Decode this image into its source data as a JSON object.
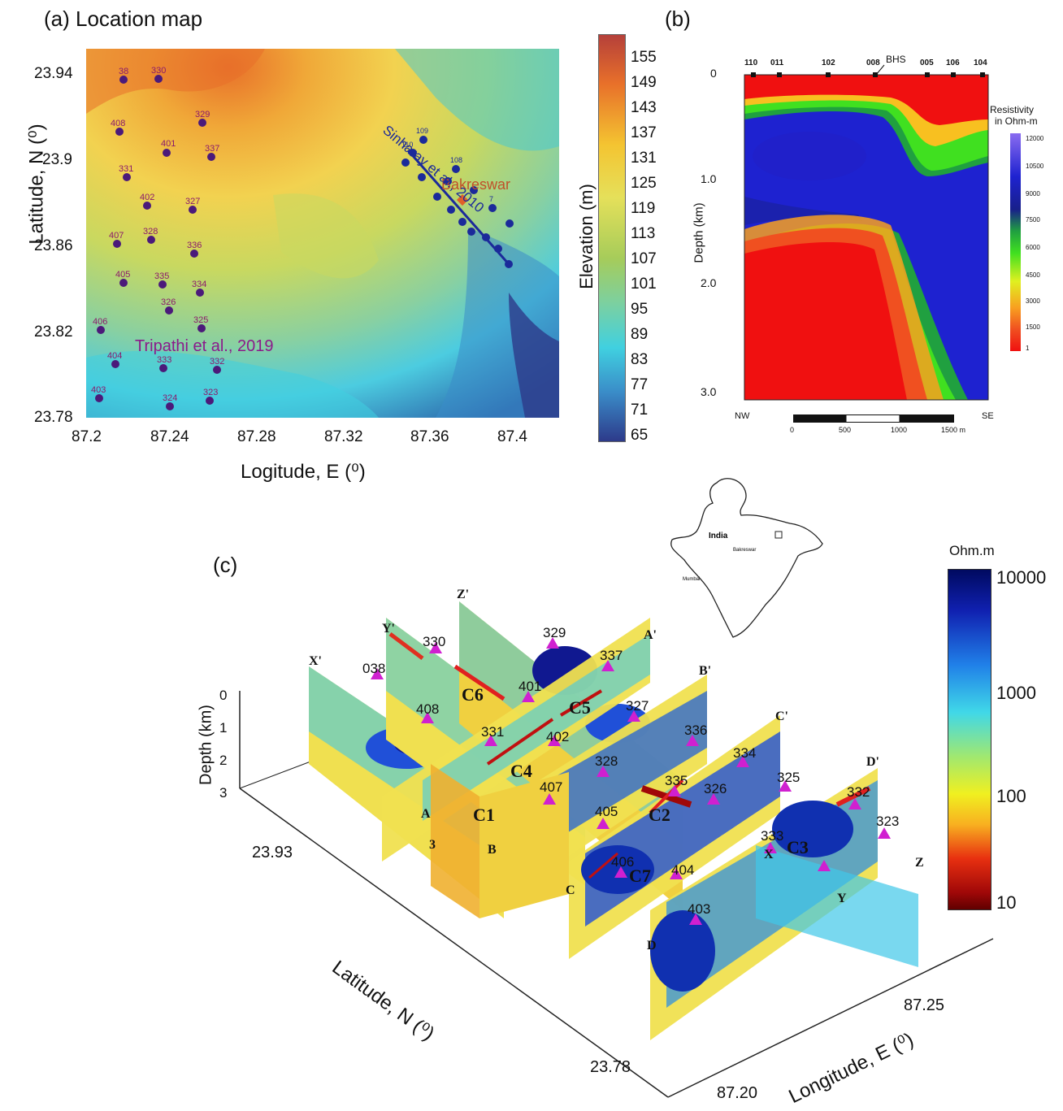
{
  "panel_a": {
    "title": "(a)  Location map",
    "y_axis_title": "Latitude, N (⁰)",
    "x_axis_title": "Logitude, E (⁰)",
    "y_ticks": [
      "23.94",
      "23.9",
      "23.86",
      "23.82",
      "23.78"
    ],
    "x_ticks": [
      "87.2",
      "87.24",
      "87.28",
      "87.32",
      "87.36",
      "87.4"
    ],
    "colorbar_title": "Elevation (m)",
    "colorbar_ticks": [
      "155",
      "149",
      "143",
      "137",
      "131",
      "125",
      "119",
      "113",
      "107",
      "101",
      "95",
      "89",
      "83",
      "77",
      "71",
      "65"
    ],
    "annotation_tripathi": "Tripathi et al., 2019",
    "annotation_sinharay": "Sinharay et al., 2010",
    "annotation_place": "Bakreswar",
    "stations": [
      "38",
      "330",
      "408",
      "329",
      "401",
      "337",
      "331",
      "402",
      "327",
      "407",
      "328",
      "336",
      "405",
      "335",
      "334",
      "326",
      "406",
      "325",
      "404",
      "333",
      "332",
      "403",
      "324",
      "323"
    ],
    "profile_stations": [
      "109",
      "110",
      "108",
      "7"
    ]
  },
  "panel_b": {
    "title": "(b)",
    "y_axis_title": "Depth (km)",
    "y_ticks": [
      "0",
      "1.0",
      "2.0",
      "3.0"
    ],
    "top_labels": [
      "110",
      "011",
      "102",
      "008",
      "005",
      "106",
      "104"
    ],
    "bhs_label": "BHS",
    "colorbar_title_1": "Resistivity",
    "colorbar_title_2": "in Ohm-m",
    "colorbar_ticks": [
      "12000",
      "10500",
      "9000",
      "7500",
      "6000",
      "4500",
      "3000",
      "1500",
      "1"
    ],
    "left_dir": "NW",
    "right_dir": "SE",
    "scale_ticks": [
      "0",
      "500",
      "1000",
      "1500 m"
    ]
  },
  "panel_c": {
    "title": "(c)",
    "depth_axis_title": "Depth (km)",
    "depth_ticks": [
      "0",
      "1",
      "2",
      "3"
    ],
    "lat_axis_title": "Latitude, N (⁰)",
    "lon_axis_title": "Longitude, E (⁰)",
    "lat_ticks": [
      "23.93",
      "23.78"
    ],
    "lon_ticks": [
      "87.25",
      "87.20"
    ],
    "colorbar_title": "Ohm.m",
    "colorbar_ticks": [
      "10000",
      "1000",
      "100",
      "10"
    ],
    "stations": [
      "038",
      "330",
      "329",
      "337",
      "408",
      "401",
      "327",
      "336",
      "331",
      "402",
      "334",
      "407",
      "328",
      "335",
      "325",
      "326",
      "332",
      "405",
      "333",
      "323",
      "406",
      "404",
      "403"
    ],
    "profile_labels": [
      "X'",
      "Y'",
      "Z'",
      "A'",
      "B'",
      "C'",
      "D'",
      "A",
      "B",
      "C",
      "D",
      "X",
      "Y",
      "Z",
      "3"
    ],
    "conductors": [
      "C6",
      "C5",
      "C4",
      "C1",
      "C2",
      "C3",
      "C7"
    ],
    "inset_india": "India",
    "inset_bakreswar": "Bakreswar",
    "inset_mumbai": "Mumbai"
  },
  "colors": {
    "station_purple": "#4b1a7a",
    "station_label": "#8b1a6b",
    "profile_blue": "#1b2a9a",
    "marker_magenta": "#d020d0",
    "bakreswar_orange": "#e0602a"
  }
}
